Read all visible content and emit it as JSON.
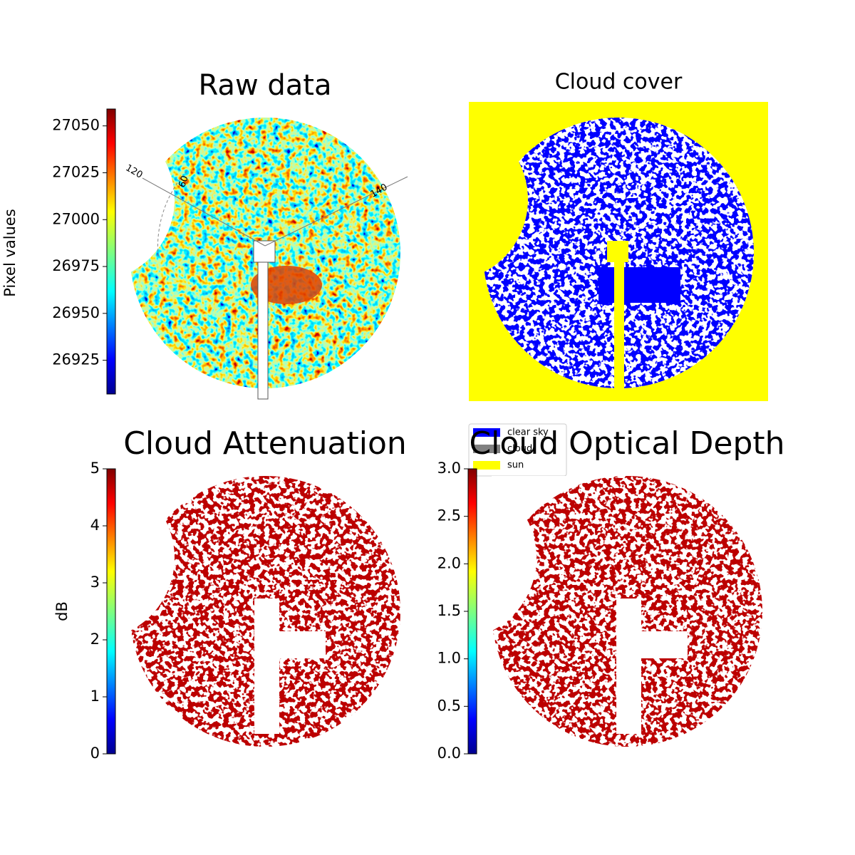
{
  "chart_data": [
    {
      "type": "image",
      "title": "Raw data",
      "colorbar_label": "Pixel values",
      "ylim": [
        26907,
        27059
      ],
      "yticks": [
        26925,
        26950,
        26975,
        27000,
        27025,
        27050
      ],
      "annotations": [
        "120",
        "60",
        "140"
      ]
    },
    {
      "type": "image",
      "title": "Cloud cover",
      "series": [
        {
          "name": "clear sky",
          "color": "#0000ff"
        },
        {
          "name": "cloud",
          "color": "#808080"
        },
        {
          "name": "sun",
          "color": "#ffff00"
        }
      ]
    },
    {
      "type": "image",
      "title": "Cloud Attenuation",
      "colorbar_label": "dB",
      "ylim": [
        0,
        5
      ],
      "yticks": [
        0,
        1,
        2,
        3,
        4,
        5
      ]
    },
    {
      "type": "image",
      "title": "Cloud Optical Depth",
      "ylim": [
        0,
        3
      ],
      "yticks": [
        {
          "value": 0,
          "label": "0.0"
        },
        {
          "value": 0.5,
          "label": "0.5"
        },
        {
          "value": 1,
          "label": "1.0"
        },
        {
          "value": 1.5,
          "label": "1.5"
        },
        {
          "value": 2,
          "label": "2.0"
        },
        {
          "value": 2.5,
          "label": "2.5"
        },
        {
          "value": 3,
          "label": "3.0"
        }
      ]
    }
  ]
}
